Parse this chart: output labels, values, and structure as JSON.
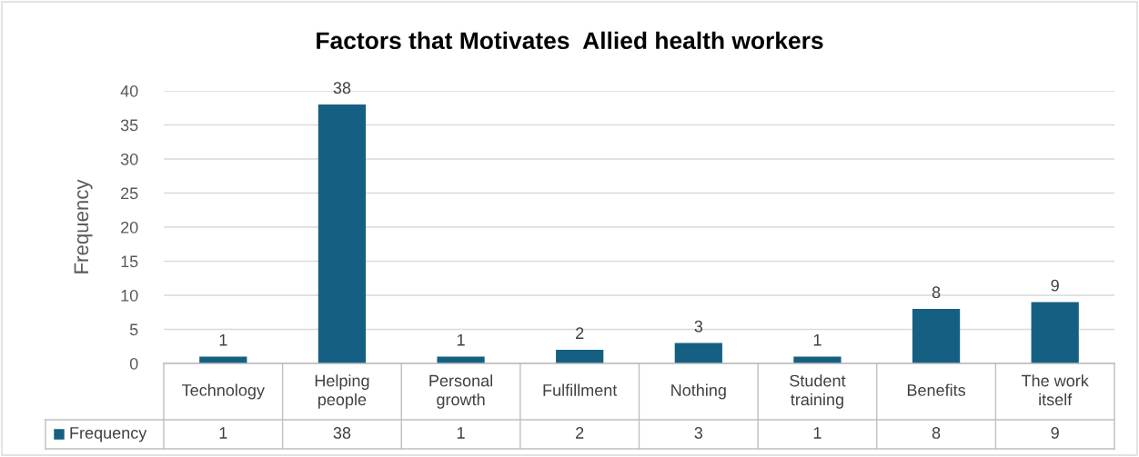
{
  "chart_data": {
    "type": "bar",
    "title": "Factors that Motivates  Allied health workers",
    "ylabel": "Frequency",
    "categories": [
      "Technology",
      "Helping people",
      "Personal growth",
      "Fulfillment",
      "Nothing",
      "Student training",
      "Benefits",
      "The work itself"
    ],
    "series": [
      {
        "name": "Frequency",
        "color": "#156082",
        "values": [
          1,
          38,
          1,
          2,
          3,
          1,
          8,
          9
        ],
        "value_labels": [
          "1",
          "38",
          "1",
          "2",
          "3",
          "1",
          "8",
          "9"
        ]
      }
    ],
    "annotations": [
      "1",
      "38",
      "1",
      "2",
      "3",
      "1",
      "8",
      "9"
    ],
    "ylim": [
      0,
      40
    ],
    "yticks": [
      0,
      5,
      10,
      15,
      20,
      25,
      30,
      35,
      40
    ],
    "grid": "y",
    "data_labels": true,
    "legend": "bottom"
  }
}
